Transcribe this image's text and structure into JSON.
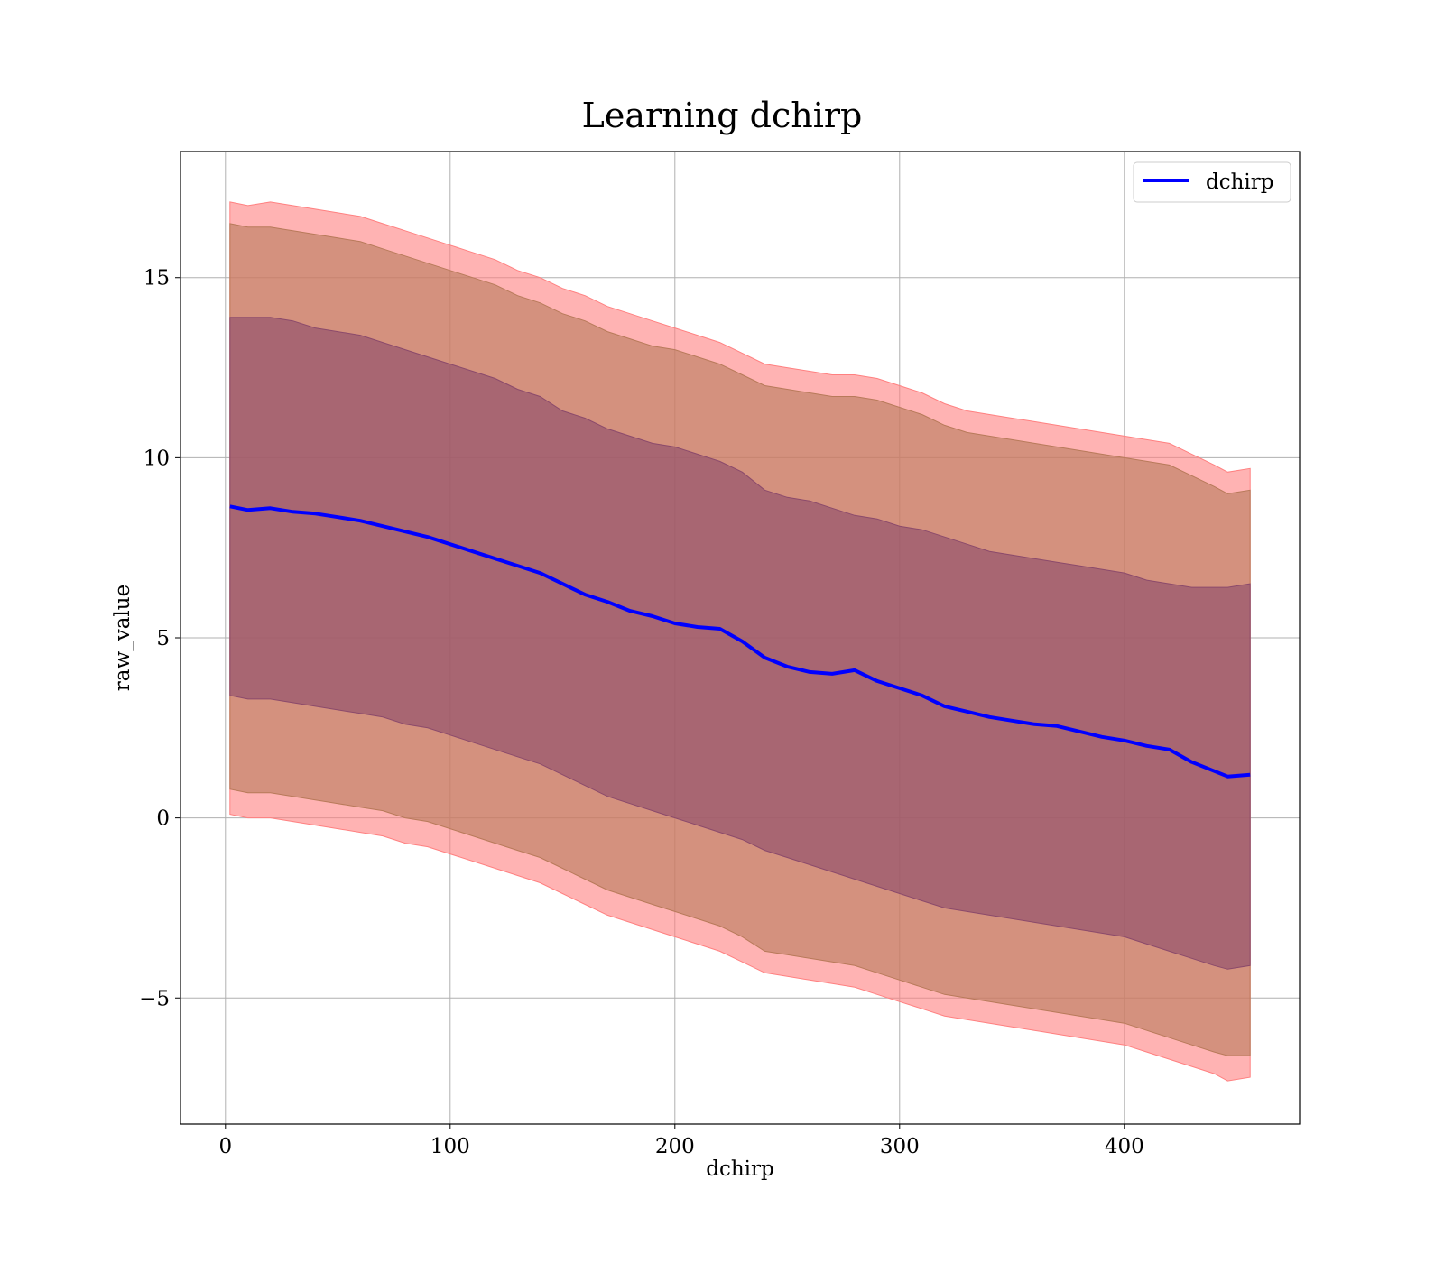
{
  "chart_data": {
    "type": "area",
    "title": "Learning dchirp",
    "xlabel": "dchirp",
    "ylabel": "raw_value",
    "xlim": [
      -20,
      478
    ],
    "ylim": [
      -8.5,
      18.5
    ],
    "xticks": [
      0,
      100,
      200,
      300,
      400
    ],
    "xtick_labels": [
      "0",
      "100",
      "200",
      "300",
      "400"
    ],
    "yticks": [
      -5,
      0,
      5,
      10,
      15
    ],
    "ytick_labels": [
      "−5",
      "0",
      "5",
      "10",
      "15"
    ],
    "grid": true,
    "legend": {
      "position": "top-right",
      "entries": [
        {
          "label": "dchirp",
          "color": "#0000ff"
        }
      ]
    },
    "x": [
      2,
      10,
      20,
      30,
      40,
      50,
      60,
      70,
      80,
      90,
      100,
      110,
      120,
      130,
      140,
      150,
      160,
      170,
      180,
      190,
      200,
      210,
      220,
      230,
      240,
      250,
      260,
      270,
      280,
      290,
      300,
      310,
      320,
      330,
      340,
      350,
      360,
      370,
      380,
      390,
      400,
      410,
      420,
      430,
      440,
      446,
      456
    ],
    "series": [
      {
        "name": "dchirp",
        "role": "mean",
        "color": "#0000ff",
        "values": [
          8.65,
          8.55,
          8.6,
          8.5,
          8.45,
          8.35,
          8.25,
          8.1,
          7.95,
          7.8,
          7.6,
          7.4,
          7.2,
          7.0,
          6.8,
          6.5,
          6.2,
          6.0,
          5.75,
          5.6,
          5.4,
          5.3,
          5.25,
          4.9,
          4.45,
          4.2,
          4.05,
          4.0,
          4.1,
          3.8,
          3.6,
          3.4,
          3.1,
          2.95,
          2.8,
          2.7,
          2.6,
          2.55,
          2.4,
          2.25,
          2.15,
          2.0,
          1.9,
          1.55,
          1.3,
          1.15,
          1.2
        ]
      },
      {
        "name": "band-1",
        "role": "band",
        "color": "#8b4a6b",
        "upper": [
          13.9,
          13.9,
          13.9,
          13.8,
          13.6,
          13.5,
          13.4,
          13.2,
          13.0,
          12.8,
          12.6,
          12.4,
          12.2,
          11.9,
          11.7,
          11.3,
          11.1,
          10.8,
          10.6,
          10.4,
          10.3,
          10.1,
          9.9,
          9.6,
          9.1,
          8.9,
          8.8,
          8.6,
          8.4,
          8.3,
          8.1,
          8.0,
          7.8,
          7.6,
          7.4,
          7.3,
          7.2,
          7.1,
          7.0,
          6.9,
          6.8,
          6.6,
          6.5,
          6.4,
          6.4,
          6.4,
          6.5
        ],
        "lower": [
          3.4,
          3.3,
          3.3,
          3.2,
          3.1,
          3.0,
          2.9,
          2.8,
          2.6,
          2.5,
          2.3,
          2.1,
          1.9,
          1.7,
          1.5,
          1.2,
          0.9,
          0.6,
          0.4,
          0.2,
          0.0,
          -0.2,
          -0.4,
          -0.6,
          -0.9,
          -1.1,
          -1.3,
          -1.5,
          -1.7,
          -1.9,
          -2.1,
          -2.3,
          -2.5,
          -2.6,
          -2.7,
          -2.8,
          -2.9,
          -3.0,
          -3.1,
          -3.2,
          -3.3,
          -3.5,
          -3.7,
          -3.9,
          -4.1,
          -4.2,
          -4.1
        ]
      },
      {
        "name": "band-2",
        "role": "band",
        "color": "#b87a5a",
        "upper": [
          16.5,
          16.4,
          16.4,
          16.3,
          16.2,
          16.1,
          16.0,
          15.8,
          15.6,
          15.4,
          15.2,
          15.0,
          14.8,
          14.5,
          14.3,
          14.0,
          13.8,
          13.5,
          13.3,
          13.1,
          13.0,
          12.8,
          12.6,
          12.3,
          12.0,
          11.9,
          11.8,
          11.7,
          11.7,
          11.6,
          11.4,
          11.2,
          10.9,
          10.7,
          10.6,
          10.5,
          10.4,
          10.3,
          10.2,
          10.1,
          10.0,
          9.9,
          9.8,
          9.5,
          9.2,
          9.0,
          9.1
        ],
        "lower": [
          0.8,
          0.7,
          0.7,
          0.6,
          0.5,
          0.4,
          0.3,
          0.2,
          0.0,
          -0.1,
          -0.3,
          -0.5,
          -0.7,
          -0.9,
          -1.1,
          -1.4,
          -1.7,
          -2.0,
          -2.2,
          -2.4,
          -2.6,
          -2.8,
          -3.0,
          -3.3,
          -3.7,
          -3.8,
          -3.9,
          -4.0,
          -4.1,
          -4.3,
          -4.5,
          -4.7,
          -4.9,
          -5.0,
          -5.1,
          -5.2,
          -5.3,
          -5.4,
          -5.5,
          -5.6,
          -5.7,
          -5.9,
          -6.1,
          -6.3,
          -6.5,
          -6.6,
          -6.6
        ]
      },
      {
        "name": "band-3",
        "role": "band",
        "color": "#ff8080",
        "upper": [
          17.1,
          17.0,
          17.1,
          17.0,
          16.9,
          16.8,
          16.7,
          16.5,
          16.3,
          16.1,
          15.9,
          15.7,
          15.5,
          15.2,
          15.0,
          14.7,
          14.5,
          14.2,
          14.0,
          13.8,
          13.6,
          13.4,
          13.2,
          12.9,
          12.6,
          12.5,
          12.4,
          12.3,
          12.3,
          12.2,
          12.0,
          11.8,
          11.5,
          11.3,
          11.2,
          11.1,
          11.0,
          10.9,
          10.8,
          10.7,
          10.6,
          10.5,
          10.4,
          10.1,
          9.8,
          9.6,
          9.7
        ],
        "lower": [
          0.1,
          0.0,
          0.0,
          -0.1,
          -0.2,
          -0.3,
          -0.4,
          -0.5,
          -0.7,
          -0.8,
          -1.0,
          -1.2,
          -1.4,
          -1.6,
          -1.8,
          -2.1,
          -2.4,
          -2.7,
          -2.9,
          -3.1,
          -3.3,
          -3.5,
          -3.7,
          -4.0,
          -4.3,
          -4.4,
          -4.5,
          -4.6,
          -4.7,
          -4.9,
          -5.1,
          -5.3,
          -5.5,
          -5.6,
          -5.7,
          -5.8,
          -5.9,
          -6.0,
          -6.1,
          -6.2,
          -6.3,
          -6.5,
          -6.7,
          -6.9,
          -7.1,
          -7.3,
          -7.2
        ]
      }
    ]
  }
}
